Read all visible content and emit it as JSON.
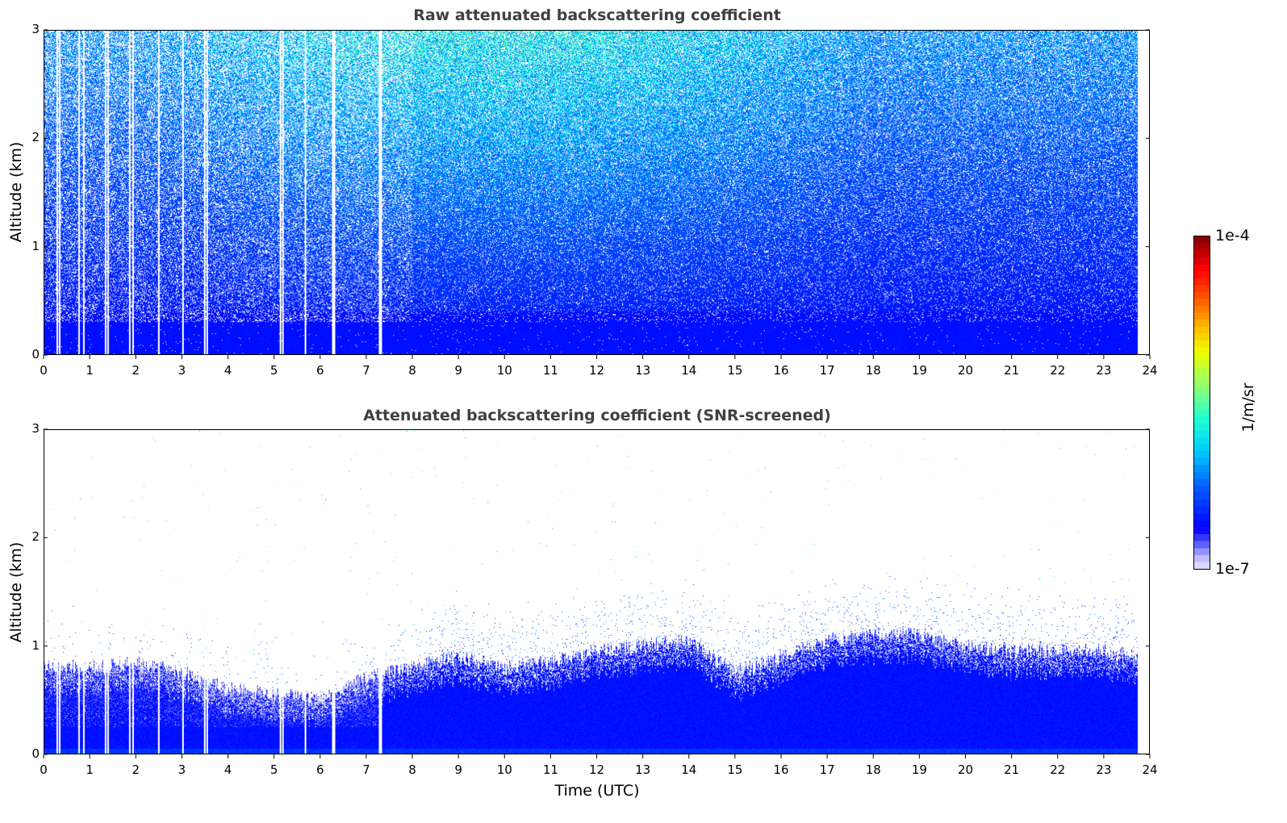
{
  "chart_data": [
    {
      "type": "heatmap",
      "title": "Raw attenuated backscattering coefficient",
      "xlabel": "",
      "ylabel": "Altitude (km)",
      "xlim": [
        0,
        24
      ],
      "ylim": [
        0,
        3
      ],
      "x_ticks": [
        "0",
        "1",
        "2",
        "3",
        "4",
        "5",
        "6",
        "7",
        "8",
        "9",
        "10",
        "11",
        "12",
        "13",
        "14",
        "15",
        "16",
        "17",
        "18",
        "19",
        "20",
        "21",
        "22",
        "23",
        "24"
      ],
      "y_ticks": [
        "0",
        "1",
        "2",
        "3"
      ],
      "data_end_hour": 23.75,
      "data_gap_hours": [
        0.27,
        0.33,
        0.75,
        0.85,
        1.32,
        1.37,
        1.85,
        1.92,
        2.48,
        3.0,
        3.47,
        3.53,
        5.12,
        5.18,
        5.67,
        6.25,
        6.29,
        7.27,
        7.31
      ],
      "description_values": {
        "near_surface_log10": -6.8,
        "top_log10": -5.6
      }
    },
    {
      "type": "heatmap",
      "title": "Attenuated backscattering coefficient (SNR-screened)",
      "xlabel": "Time (UTC)",
      "ylabel": "Altitude (km)",
      "xlim": [
        0,
        24
      ],
      "ylim": [
        0,
        3
      ],
      "x_ticks": [
        "0",
        "1",
        "2",
        "3",
        "4",
        "5",
        "6",
        "7",
        "8",
        "9",
        "10",
        "11",
        "12",
        "13",
        "14",
        "15",
        "16",
        "17",
        "18",
        "19",
        "20",
        "21",
        "22",
        "23",
        "24"
      ],
      "y_ticks": [
        "0",
        "1",
        "2",
        "3"
      ],
      "data_end_hour": 23.75,
      "layer_top_km": {
        "hours": [
          0,
          1,
          2,
          3,
          4,
          5,
          6,
          7,
          8,
          9,
          10,
          11,
          12,
          13,
          14,
          15,
          16,
          17,
          18,
          19,
          20,
          21,
          22,
          23,
          23.75
        ],
        "values": [
          0.8,
          0.8,
          0.85,
          0.75,
          0.6,
          0.55,
          0.5,
          0.7,
          0.8,
          0.9,
          0.8,
          0.85,
          0.95,
          1.0,
          1.05,
          0.75,
          0.9,
          1.05,
          1.1,
          1.1,
          1.0,
          0.95,
          0.95,
          0.95,
          0.9
        ]
      }
    }
  ],
  "colorbar": {
    "label": "1/m/sr",
    "max_label": "1e-4",
    "min_label": "1e-7",
    "scale": "log",
    "range": [
      1e-07,
      0.0001
    ],
    "colors": [
      "#e6e6fa",
      "#b0b0ff",
      "#5050ff",
      "#0000ff",
      "#0060ff",
      "#00c8ff",
      "#20ffd0",
      "#90ff70",
      "#f0ff00",
      "#ffc000",
      "#ff5000",
      "#ff0000",
      "#800000"
    ]
  }
}
